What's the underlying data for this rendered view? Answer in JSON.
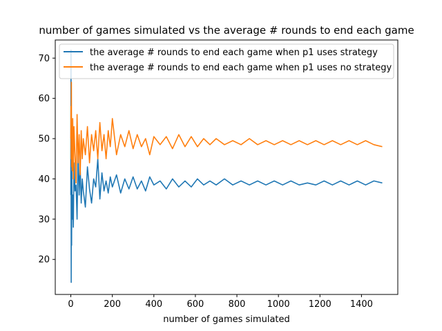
{
  "chart_data": {
    "type": "line",
    "title": "number of games simulated vs the average # rounds to end each game",
    "xlabel": "number of games simulated",
    "ylabel": "",
    "xlim": [
      -75,
      1575
    ],
    "ylim": [
      11.3,
      74.5
    ],
    "xticks": [
      0,
      200,
      400,
      600,
      800,
      1000,
      1200,
      1400
    ],
    "yticks": [
      20,
      30,
      40,
      50,
      60,
      70
    ],
    "grid": false,
    "legend_position": "top",
    "series": [
      {
        "name": "the average # rounds to end each game when p1 uses strategy",
        "color": "#1f77b4",
        "x": [
          0,
          1,
          2,
          3,
          4,
          5,
          7,
          9,
          12,
          15,
          20,
          25,
          30,
          35,
          40,
          45,
          50,
          55,
          60,
          70,
          80,
          90,
          100,
          110,
          120,
          130,
          140,
          150,
          160,
          170,
          180,
          190,
          200,
          220,
          240,
          260,
          280,
          300,
          320,
          340,
          360,
          380,
          400,
          430,
          460,
          490,
          520,
          550,
          580,
          610,
          640,
          670,
          700,
          740,
          780,
          820,
          860,
          900,
          940,
          980,
          1020,
          1060,
          1100,
          1140,
          1180,
          1220,
          1260,
          1300,
          1340,
          1380,
          1420,
          1460,
          1500
        ],
        "y": [
          36,
          72,
          14.3,
          40,
          23.5,
          42,
          30,
          36,
          28,
          44,
          37,
          38.5,
          30,
          47,
          36,
          43,
          34,
          40,
          37,
          33,
          43,
          37.5,
          34,
          40,
          38,
          45,
          35,
          41.5,
          37,
          39.5,
          36.5,
          40.5,
          38,
          41,
          36.5,
          40,
          37.5,
          40.5,
          37.5,
          39.5,
          37,
          40.5,
          38.5,
          39.5,
          37.5,
          40,
          38,
          39.5,
          38,
          40,
          38.5,
          39.5,
          38.5,
          40,
          38.5,
          39.5,
          38.5,
          39.5,
          38.5,
          39.5,
          38.5,
          39.5,
          38.5,
          39,
          38.5,
          39.5,
          38.5,
          39.5,
          38.5,
          39.5,
          38.5,
          39.5,
          39
        ]
      },
      {
        "name": "the average # rounds to end each game when p1 uses no strategy",
        "color": "#ff7f0e",
        "x": [
          0,
          1,
          2,
          3,
          4,
          5,
          7,
          9,
          12,
          15,
          20,
          25,
          30,
          35,
          40,
          45,
          50,
          55,
          60,
          70,
          80,
          90,
          100,
          110,
          120,
          130,
          140,
          150,
          160,
          170,
          180,
          190,
          200,
          220,
          240,
          260,
          280,
          300,
          320,
          340,
          360,
          380,
          400,
          430,
          460,
          490,
          520,
          550,
          580,
          610,
          640,
          670,
          700,
          740,
          780,
          820,
          860,
          900,
          940,
          980,
          1020,
          1060,
          1100,
          1140,
          1180,
          1220,
          1260,
          1300,
          1340,
          1380,
          1420,
          1460,
          1500
        ],
        "y": [
          50,
          58,
          45,
          64,
          43,
          51,
          42,
          55,
          40,
          53,
          46,
          39,
          56,
          44,
          51,
          41,
          52,
          45,
          50,
          46,
          53,
          44,
          51,
          47,
          52,
          45,
          54,
          47,
          51,
          45,
          52,
          48,
          55,
          46,
          51,
          48,
          52,
          47.5,
          51,
          48,
          50,
          46,
          50.5,
          48.5,
          50.5,
          47.5,
          51,
          48,
          50.5,
          48,
          50,
          48.5,
          50,
          48.5,
          49.5,
          48.5,
          50,
          48.5,
          49.5,
          48.5,
          49.5,
          48.5,
          49.5,
          48.5,
          49.5,
          48.5,
          49.5,
          48.5,
          49.5,
          48.5,
          49.5,
          48.5,
          48
        ]
      }
    ]
  }
}
